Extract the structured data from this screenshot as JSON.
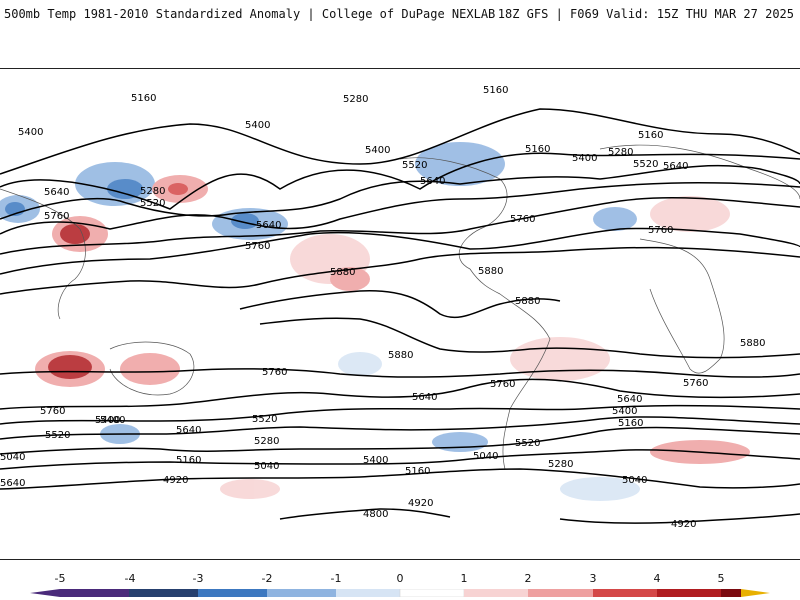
{
  "header": {
    "left_title": "500mb Temp 1981-2010 Standardized Anomaly | College of DuPage NEXLAB",
    "right_title": "18Z GFS | F069 Valid: 15Z THU MAR 27 2025"
  },
  "legend": {
    "ticks": [
      "-5",
      "-4",
      "-3",
      "-2",
      "-1",
      "0",
      "1",
      "2",
      "3",
      "4",
      "5"
    ],
    "colors": {
      "m5": "#4a2a7a",
      "m4": "#26406e",
      "m3": "#3c78c0",
      "m2": "#8fb4e0",
      "m1": "#d6e4f4",
      "p1": "#f7d3d3",
      "p2": "#eea0a0",
      "p3": "#d44848",
      "p4": "#b01c20",
      "p5": "#7a0a10",
      "cap_high": "#e8b000"
    }
  },
  "contours": {
    "labels": [
      "5160",
      "5280",
      "5160",
      "5400",
      "5400",
      "5400",
      "5280",
      "5640",
      "5520",
      "5520",
      "5160",
      "5400",
      "5640",
      "5280",
      "5160",
      "5640",
      "5520",
      "5760",
      "5640",
      "5760",
      "5760",
      "5880",
      "5880",
      "5880",
      "5880",
      "5880",
      "5760",
      "5760",
      "5760",
      "5640",
      "5760",
      "5760",
      "5640",
      "5400",
      "5520",
      "5520",
      "5640",
      "5400",
      "5160",
      "5040",
      "5520",
      "5280",
      "5280",
      "5400",
      "5040",
      "5160",
      "5040",
      "4920",
      "4920",
      "4800",
      "5040",
      "4920",
      "5640",
      "5400",
      "5160"
    ]
  }
}
